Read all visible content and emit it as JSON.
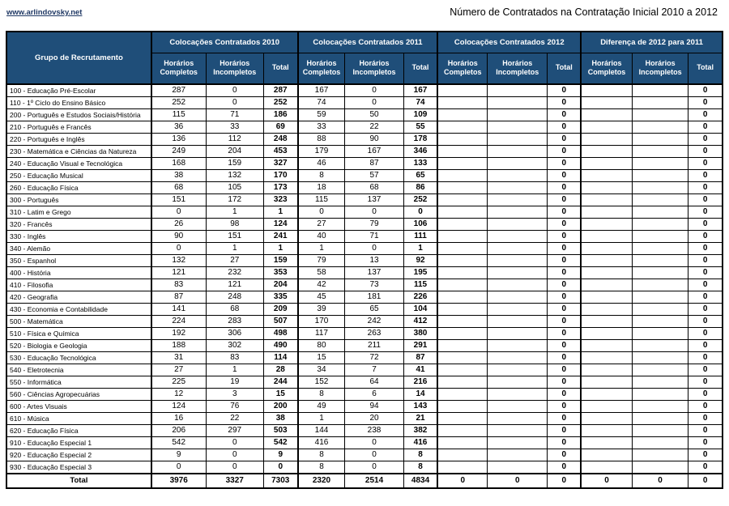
{
  "page": {
    "link": "www.arlindovsky.net",
    "title": "Número de Contratados na Contratação Inicial 2010 a 2012"
  },
  "colors": {
    "header_bg": "#1F4E79",
    "header_text": "#FFFFFF",
    "border": "#000000",
    "link": "#1F3864"
  },
  "table": {
    "corner_header": "Grupo de Recrutamento",
    "groups": [
      "Colocações Contratados 2010",
      "Colocações Contratados 2011",
      "Colocações Contratados 2012",
      "Diferença de 2012 para 2011"
    ],
    "sub_headers": [
      "Horários Completos",
      "Horários Incompletos",
      "Total"
    ],
    "rows": [
      {
        "name": "100 - Educação Pré-Escolar",
        "values": [
          287,
          0,
          287,
          167,
          0,
          167,
          "",
          "",
          0,
          "",
          "",
          0
        ]
      },
      {
        "name": "110 - 1º Ciclo do Ensino Básico",
        "values": [
          252,
          0,
          252,
          74,
          0,
          74,
          "",
          "",
          0,
          "",
          "",
          0
        ]
      },
      {
        "name": "200 - Português e Estudos Sociais/História",
        "values": [
          115,
          71,
          186,
          59,
          50,
          109,
          "",
          "",
          0,
          "",
          "",
          0
        ]
      },
      {
        "name": "210 - Português e Francês",
        "values": [
          36,
          33,
          69,
          33,
          22,
          55,
          "",
          "",
          0,
          "",
          "",
          0
        ]
      },
      {
        "name": "220 - Português e Inglês",
        "values": [
          136,
          112,
          248,
          88,
          90,
          178,
          "",
          "",
          0,
          "",
          "",
          0
        ]
      },
      {
        "name": "230 - Matemática e Ciências da Natureza",
        "values": [
          249,
          204,
          453,
          179,
          167,
          346,
          "",
          "",
          0,
          "",
          "",
          0
        ]
      },
      {
        "name": "240 - Educação Visual e Tecnológica",
        "values": [
          168,
          159,
          327,
          46,
          87,
          133,
          "",
          "",
          0,
          "",
          "",
          0
        ]
      },
      {
        "name": "250 - Educação Musical",
        "values": [
          38,
          132,
          170,
          8,
          57,
          65,
          "",
          "",
          0,
          "",
          "",
          0
        ]
      },
      {
        "name": "260 - Educação Física",
        "values": [
          68,
          105,
          173,
          18,
          68,
          86,
          "",
          "",
          0,
          "",
          "",
          0
        ]
      },
      {
        "name": "300 - Português",
        "values": [
          151,
          172,
          323,
          115,
          137,
          252,
          "",
          "",
          0,
          "",
          "",
          0
        ]
      },
      {
        "name": "310 - Latim e Grego",
        "values": [
          0,
          1,
          1,
          0,
          0,
          0,
          "",
          "",
          0,
          "",
          "",
          0
        ]
      },
      {
        "name": "320 - Francês",
        "values": [
          26,
          98,
          124,
          27,
          79,
          106,
          "",
          "",
          0,
          "",
          "",
          0
        ]
      },
      {
        "name": "330 - Inglês",
        "values": [
          90,
          151,
          241,
          40,
          71,
          111,
          "",
          "",
          0,
          "",
          "",
          0
        ]
      },
      {
        "name": "340 - Alemão",
        "values": [
          0,
          1,
          1,
          1,
          0,
          1,
          "",
          "",
          0,
          "",
          "",
          0
        ]
      },
      {
        "name": "350 - Espanhol",
        "values": [
          132,
          27,
          159,
          79,
          13,
          92,
          "",
          "",
          0,
          "",
          "",
          0
        ]
      },
      {
        "name": "400 - História",
        "values": [
          121,
          232,
          353,
          58,
          137,
          195,
          "",
          "",
          0,
          "",
          "",
          0
        ]
      },
      {
        "name": "410 - Filosofia",
        "values": [
          83,
          121,
          204,
          42,
          73,
          115,
          "",
          "",
          0,
          "",
          "",
          0
        ]
      },
      {
        "name": "420 - Geografia",
        "values": [
          87,
          248,
          335,
          45,
          181,
          226,
          "",
          "",
          0,
          "",
          "",
          0
        ]
      },
      {
        "name": "430 - Economia e Contabilidade",
        "values": [
          141,
          68,
          209,
          39,
          65,
          104,
          "",
          "",
          0,
          "",
          "",
          0
        ]
      },
      {
        "name": "500 - Matemática",
        "values": [
          224,
          283,
          507,
          170,
          242,
          412,
          "",
          "",
          0,
          "",
          "",
          0
        ]
      },
      {
        "name": "510 - Física e Química",
        "values": [
          192,
          306,
          498,
          117,
          263,
          380,
          "",
          "",
          0,
          "",
          "",
          0
        ]
      },
      {
        "name": "520 - Biologia e Geologia",
        "values": [
          188,
          302,
          490,
          80,
          211,
          291,
          "",
          "",
          0,
          "",
          "",
          0
        ]
      },
      {
        "name": "530 - Educação Tecnológica",
        "values": [
          31,
          83,
          114,
          15,
          72,
          87,
          "",
          "",
          0,
          "",
          "",
          0
        ]
      },
      {
        "name": "540 - Eletrotecnia",
        "values": [
          27,
          1,
          28,
          34,
          7,
          41,
          "",
          "",
          0,
          "",
          "",
          0
        ]
      },
      {
        "name": "550 - Informática",
        "values": [
          225,
          19,
          244,
          152,
          64,
          216,
          "",
          "",
          0,
          "",
          "",
          0
        ]
      },
      {
        "name": "560 - Ciências Agropecuárias",
        "values": [
          12,
          3,
          15,
          8,
          6,
          14,
          "",
          "",
          0,
          "",
          "",
          0
        ]
      },
      {
        "name": "600 - Artes Visuais",
        "values": [
          124,
          76,
          200,
          49,
          94,
          143,
          "",
          "",
          0,
          "",
          "",
          0
        ]
      },
      {
        "name": "610 - Música",
        "values": [
          16,
          22,
          38,
          1,
          20,
          21,
          "",
          "",
          0,
          "",
          "",
          0
        ]
      },
      {
        "name": "620 - Educação Física",
        "values": [
          206,
          297,
          503,
          144,
          238,
          382,
          "",
          "",
          0,
          "",
          "",
          0
        ]
      },
      {
        "name": "910 - Educação Especial 1",
        "values": [
          542,
          0,
          542,
          416,
          0,
          416,
          "",
          "",
          0,
          "",
          "",
          0
        ]
      },
      {
        "name": "920 - Educação Especial 2",
        "values": [
          9,
          0,
          9,
          8,
          0,
          8,
          "",
          "",
          0,
          "",
          "",
          0
        ]
      },
      {
        "name": "930 - Educação Especial 3",
        "values": [
          0,
          0,
          0,
          8,
          0,
          8,
          "",
          "",
          0,
          "",
          "",
          0
        ]
      }
    ],
    "total_row": {
      "name": "Total",
      "values": [
        3976,
        3327,
        7303,
        2320,
        2514,
        4834,
        0,
        0,
        0,
        0,
        0,
        0
      ]
    }
  }
}
